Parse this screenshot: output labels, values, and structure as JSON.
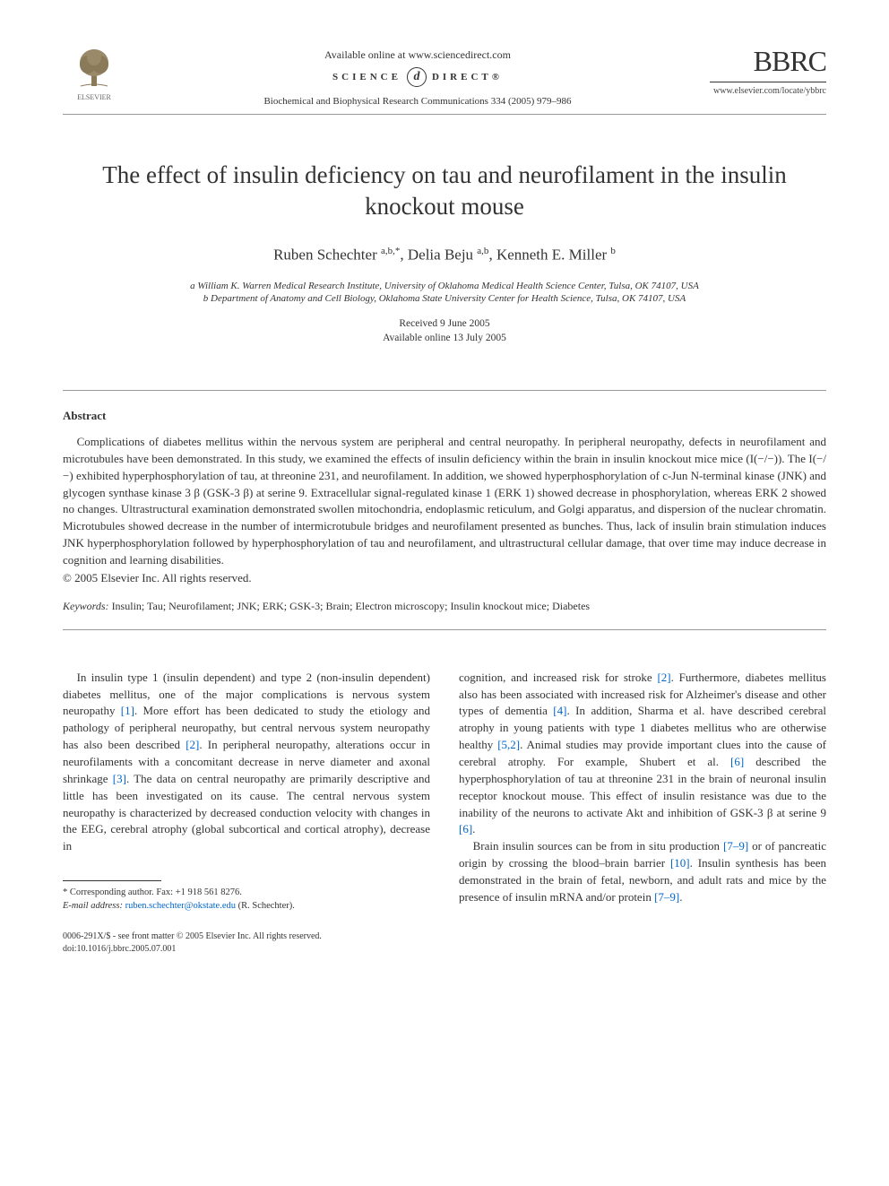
{
  "header": {
    "publisher_name": "ELSEVIER",
    "available_online": "Available online at www.sciencedirect.com",
    "sciencedirect_left": "SCIENCE",
    "sciencedirect_d": "d",
    "sciencedirect_right": "DIRECT®",
    "citation": "Biochemical and Biophysical Research Communications 334 (2005) 979–986",
    "journal_abbr": "BBRC",
    "journal_url": "www.elsevier.com/locate/ybbrc"
  },
  "title": "The effect of insulin deficiency on tau and neurofilament in the insulin knockout mouse",
  "authors_html": "Ruben Schechter <sup>a,b,*</sup>, Delia Beju <sup>a,b</sup>, Kenneth E. Miller <sup>b</sup>",
  "affiliations": [
    "a William K. Warren Medical Research Institute, University of Oklahoma Medical Health Science Center, Tulsa, OK 74107, USA",
    "b Department of Anatomy and Cell Biology, Oklahoma State University Center for Health Science, Tulsa, OK 74107, USA"
  ],
  "dates": {
    "received": "Received 9 June 2005",
    "online": "Available online 13 July 2005"
  },
  "abstract": {
    "heading": "Abstract",
    "body": "Complications of diabetes mellitus within the nervous system are peripheral and central neuropathy. In peripheral neuropathy, defects in neurofilament and microtubules have been demonstrated. In this study, we examined the effects of insulin deficiency within the brain in insulin knockout mice mice (I(−/−)). The I(−/−) exhibited hyperphosphorylation of tau, at threonine 231, and neurofilament. In addition, we showed hyperphosphorylation of c-Jun N-terminal kinase (JNK) and glycogen synthase kinase 3 β (GSK-3 β) at serine 9. Extracellular signal-regulated kinase 1 (ERK 1) showed decrease in phosphorylation, whereas ERK 2 showed no changes. Ultrastructural examination demonstrated swollen mitochondria, endoplasmic reticulum, and Golgi apparatus, and dispersion of the nuclear chromatin. Microtubules showed decrease in the number of intermicrotubule bridges and neurofilament presented as bunches. Thus, lack of insulin brain stimulation induces JNK hyperphosphorylation followed by hyperphosphorylation of tau and neurofilament, and ultrastructural cellular damage, that over time may induce decrease in cognition and learning disabilities.",
    "copyright": "© 2005 Elsevier Inc. All rights reserved."
  },
  "keywords": {
    "label": "Keywords:",
    "list": "Insulin; Tau; Neurofilament; JNK; ERK; GSK-3; Brain; Electron microscopy; Insulin knockout mice; Diabetes"
  },
  "body_col1": "In insulin type 1 (insulin dependent) and type 2 (non-insulin dependent) diabetes mellitus, one of the major complications is nervous system neuropathy <span class=\"ref-link\">[1]</span>. More effort has been dedicated to study the etiology and pathology of peripheral neuropathy, but central nervous system neuropathy has also been described <span class=\"ref-link\">[2]</span>. In peripheral neuropathy, alterations occur in neurofilaments with a concomitant decrease in nerve diameter and axonal shrinkage <span class=\"ref-link\">[3]</span>. The data on central neuropathy are primarily descriptive and little has been investigated on its cause. The central nervous system neuropathy is characterized by decreased conduction velocity with changes in the EEG, cerebral atrophy (global subcortical and cortical atrophy), decrease in",
  "body_col2_p1": "cognition, and increased risk for stroke <span class=\"ref-link\">[2]</span>. Furthermore, diabetes mellitus also has been associated with increased risk for Alzheimer's disease and other types of dementia <span class=\"ref-link\">[4]</span>. In addition, Sharma et al. have described cerebral atrophy in young patients with type 1 diabetes mellitus who are otherwise healthy <span class=\"ref-link\">[5,2]</span>. Animal studies may provide important clues into the cause of cerebral atrophy. For example, Shubert et al. <span class=\"ref-link\">[6]</span> described the hyperphosphorylation of tau at threonine 231 in the brain of neuronal insulin receptor knockout mouse. This effect of insulin resistance was due to the inability of the neurons to activate Akt and inhibition of GSK-3 β at serine 9 <span class=\"ref-link\">[6]</span>.",
  "body_col2_p2": "Brain insulin sources can be from in situ production <span class=\"ref-link\">[7–9]</span> or of pancreatic origin by crossing the blood–brain barrier <span class=\"ref-link\">[10]</span>. Insulin synthesis has been demonstrated in the brain of fetal, newborn, and adult rats and mice by the presence of insulin mRNA and/or protein <span class=\"ref-link\">[7–9]</span>.",
  "corresponding": {
    "line1": "* Corresponding author. Fax: +1 918 561 8276.",
    "line2_label": "E-mail address:",
    "email": "ruben.schechter@okstate.edu",
    "line2_suffix": "(R. Schechter)."
  },
  "doi": {
    "line1": "0006-291X/$ - see front matter © 2005 Elsevier Inc. All rights reserved.",
    "line2": "doi:10.1016/j.bbrc.2005.07.001"
  },
  "colors": {
    "link": "#0066cc",
    "rule": "#999999",
    "text": "#333333"
  }
}
